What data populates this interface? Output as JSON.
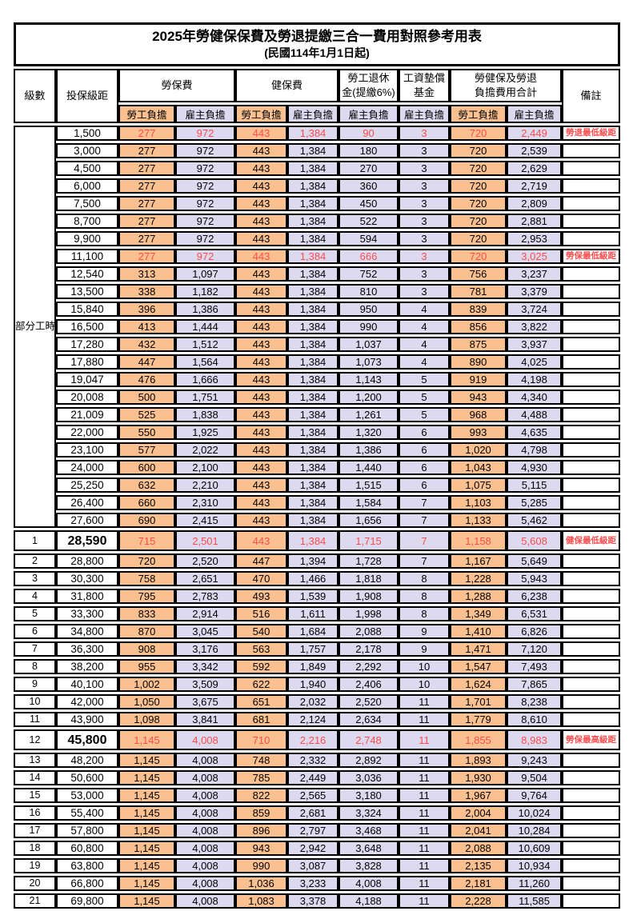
{
  "title": {
    "main": "2025年勞健保保費及勞退提繳三合一費用對照參考用表",
    "sub": "(民國114年1月1日起)"
  },
  "header": {
    "level": "級數",
    "bracket": "投保級距",
    "labor_insurance": "勞保費",
    "health_insurance": "健保費",
    "pension_line1": "勞工退休",
    "pension_line2": "金(提繳6%)",
    "wage_fund_line1": "工資墊償",
    "wage_fund_line2": "基金",
    "total_line1": "勞健保及勞退",
    "total_line2": "負擔費用合計",
    "remark": "備註",
    "employee": "勞工負擔",
    "employer": "雇主負擔"
  },
  "colors": {
    "employee_bg": "#FAC090",
    "employer_bg": "#DDDAF0",
    "highlight_text": "#FF4C4C",
    "border": "#000000"
  },
  "merged_level": {
    "label": "部分工時",
    "span": 23
  },
  "value_column_pattern": [
    "emp",
    "er",
    "emp",
    "er",
    "er",
    "er",
    "emp",
    "er"
  ],
  "rows": [
    {
      "no": null,
      "bracket": "1,500",
      "values": [
        "277",
        "972",
        "443",
        "1,384",
        "90",
        "3",
        "720",
        "2,449"
      ],
      "note": "勞退最低級距",
      "highlight": true,
      "big": false
    },
    {
      "no": null,
      "bracket": "3,000",
      "values": [
        "277",
        "972",
        "443",
        "1,384",
        "180",
        "3",
        "720",
        "2,539"
      ],
      "note": "",
      "highlight": false,
      "big": false
    },
    {
      "no": null,
      "bracket": "4,500",
      "values": [
        "277",
        "972",
        "443",
        "1,384",
        "270",
        "3",
        "720",
        "2,629"
      ],
      "note": "",
      "highlight": false,
      "big": false
    },
    {
      "no": null,
      "bracket": "6,000",
      "values": [
        "277",
        "972",
        "443",
        "1,384",
        "360",
        "3",
        "720",
        "2,719"
      ],
      "note": "",
      "highlight": false,
      "big": false
    },
    {
      "no": null,
      "bracket": "7,500",
      "values": [
        "277",
        "972",
        "443",
        "1,384",
        "450",
        "3",
        "720",
        "2,809"
      ],
      "note": "",
      "highlight": false,
      "big": false
    },
    {
      "no": null,
      "bracket": "8,700",
      "values": [
        "277",
        "972",
        "443",
        "1,384",
        "522",
        "3",
        "720",
        "2,881"
      ],
      "note": "",
      "highlight": false,
      "big": false
    },
    {
      "no": null,
      "bracket": "9,900",
      "values": [
        "277",
        "972",
        "443",
        "1,384",
        "594",
        "3",
        "720",
        "2,953"
      ],
      "note": "",
      "highlight": false,
      "big": false
    },
    {
      "no": null,
      "bracket": "11,100",
      "values": [
        "277",
        "972",
        "443",
        "1,384",
        "666",
        "3",
        "720",
        "3,025"
      ],
      "note": "勞保最低級距",
      "highlight": true,
      "big": false
    },
    {
      "no": null,
      "bracket": "12,540",
      "values": [
        "313",
        "1,097",
        "443",
        "1,384",
        "752",
        "3",
        "756",
        "3,237"
      ],
      "note": "",
      "highlight": false,
      "big": false
    },
    {
      "no": null,
      "bracket": "13,500",
      "values": [
        "338",
        "1,182",
        "443",
        "1,384",
        "810",
        "3",
        "781",
        "3,379"
      ],
      "note": "",
      "highlight": false,
      "big": false
    },
    {
      "no": null,
      "bracket": "15,840",
      "values": [
        "396",
        "1,386",
        "443",
        "1,384",
        "950",
        "4",
        "839",
        "3,724"
      ],
      "note": "",
      "highlight": false,
      "big": false
    },
    {
      "no": null,
      "bracket": "16,500",
      "values": [
        "413",
        "1,444",
        "443",
        "1,384",
        "990",
        "4",
        "856",
        "3,822"
      ],
      "note": "",
      "highlight": false,
      "big": false
    },
    {
      "no": null,
      "bracket": "17,280",
      "values": [
        "432",
        "1,512",
        "443",
        "1,384",
        "1,037",
        "4",
        "875",
        "3,937"
      ],
      "note": "",
      "highlight": false,
      "big": false
    },
    {
      "no": null,
      "bracket": "17,880",
      "values": [
        "447",
        "1,564",
        "443",
        "1,384",
        "1,073",
        "4",
        "890",
        "4,025"
      ],
      "note": "",
      "highlight": false,
      "big": false
    },
    {
      "no": null,
      "bracket": "19,047",
      "values": [
        "476",
        "1,666",
        "443",
        "1,384",
        "1,143",
        "5",
        "919",
        "4,198"
      ],
      "note": "",
      "highlight": false,
      "big": false
    },
    {
      "no": null,
      "bracket": "20,008",
      "values": [
        "500",
        "1,751",
        "443",
        "1,384",
        "1,200",
        "5",
        "943",
        "4,340"
      ],
      "note": "",
      "highlight": false,
      "big": false
    },
    {
      "no": null,
      "bracket": "21,009",
      "values": [
        "525",
        "1,838",
        "443",
        "1,384",
        "1,261",
        "5",
        "968",
        "4,488"
      ],
      "note": "",
      "highlight": false,
      "big": false
    },
    {
      "no": null,
      "bracket": "22,000",
      "values": [
        "550",
        "1,925",
        "443",
        "1,384",
        "1,320",
        "6",
        "993",
        "4,635"
      ],
      "note": "",
      "highlight": false,
      "big": false
    },
    {
      "no": null,
      "bracket": "23,100",
      "values": [
        "577",
        "2,022",
        "443",
        "1,384",
        "1,386",
        "6",
        "1,020",
        "4,798"
      ],
      "note": "",
      "highlight": false,
      "big": false
    },
    {
      "no": null,
      "bracket": "24,000",
      "values": [
        "600",
        "2,100",
        "443",
        "1,384",
        "1,440",
        "6",
        "1,043",
        "4,930"
      ],
      "note": "",
      "highlight": false,
      "big": false
    },
    {
      "no": null,
      "bracket": "25,250",
      "values": [
        "632",
        "2,210",
        "443",
        "1,384",
        "1,515",
        "6",
        "1,075",
        "5,115"
      ],
      "note": "",
      "highlight": false,
      "big": false
    },
    {
      "no": null,
      "bracket": "26,400",
      "values": [
        "660",
        "2,310",
        "443",
        "1,384",
        "1,584",
        "7",
        "1,103",
        "5,285"
      ],
      "note": "",
      "highlight": false,
      "big": false
    },
    {
      "no": null,
      "bracket": "27,600",
      "values": [
        "690",
        "2,415",
        "443",
        "1,384",
        "1,656",
        "7",
        "1,133",
        "5,462"
      ],
      "note": "",
      "highlight": false,
      "big": false
    },
    {
      "no": "1",
      "bracket": "28,590",
      "values": [
        "715",
        "2,501",
        "443",
        "1,384",
        "1,715",
        "7",
        "1,158",
        "5,608"
      ],
      "note": "健保最低級距",
      "highlight": true,
      "big": true
    },
    {
      "no": "2",
      "bracket": "28,800",
      "values": [
        "720",
        "2,520",
        "447",
        "1,394",
        "1,728",
        "7",
        "1,167",
        "5,649"
      ],
      "note": "",
      "highlight": false,
      "big": false
    },
    {
      "no": "3",
      "bracket": "30,300",
      "values": [
        "758",
        "2,651",
        "470",
        "1,466",
        "1,818",
        "8",
        "1,228",
        "5,943"
      ],
      "note": "",
      "highlight": false,
      "big": false
    },
    {
      "no": "4",
      "bracket": "31,800",
      "values": [
        "795",
        "2,783",
        "493",
        "1,539",
        "1,908",
        "8",
        "1,288",
        "6,238"
      ],
      "note": "",
      "highlight": false,
      "big": false
    },
    {
      "no": "5",
      "bracket": "33,300",
      "values": [
        "833",
        "2,914",
        "516",
        "1,611",
        "1,998",
        "8",
        "1,349",
        "6,531"
      ],
      "note": "",
      "highlight": false,
      "big": false
    },
    {
      "no": "6",
      "bracket": "34,800",
      "values": [
        "870",
        "3,045",
        "540",
        "1,684",
        "2,088",
        "9",
        "1,410",
        "6,826"
      ],
      "note": "",
      "highlight": false,
      "big": false
    },
    {
      "no": "7",
      "bracket": "36,300",
      "values": [
        "908",
        "3,176",
        "563",
        "1,757",
        "2,178",
        "9",
        "1,471",
        "7,120"
      ],
      "note": "",
      "highlight": false,
      "big": false
    },
    {
      "no": "8",
      "bracket": "38,200",
      "values": [
        "955",
        "3,342",
        "592",
        "1,849",
        "2,292",
        "10",
        "1,547",
        "7,493"
      ],
      "note": "",
      "highlight": false,
      "big": false
    },
    {
      "no": "9",
      "bracket": "40,100",
      "values": [
        "1,002",
        "3,509",
        "622",
        "1,940",
        "2,406",
        "10",
        "1,624",
        "7,865"
      ],
      "note": "",
      "highlight": false,
      "big": false
    },
    {
      "no": "10",
      "bracket": "42,000",
      "values": [
        "1,050",
        "3,675",
        "651",
        "2,032",
        "2,520",
        "11",
        "1,701",
        "8,238"
      ],
      "note": "",
      "highlight": false,
      "big": false
    },
    {
      "no": "11",
      "bracket": "43,900",
      "values": [
        "1,098",
        "3,841",
        "681",
        "2,124",
        "2,634",
        "11",
        "1,779",
        "8,610"
      ],
      "note": "",
      "highlight": false,
      "big": false
    },
    {
      "no": "12",
      "bracket": "45,800",
      "values": [
        "1,145",
        "4,008",
        "710",
        "2,216",
        "2,748",
        "11",
        "1,855",
        "8,983"
      ],
      "note": "勞保最高級距",
      "highlight": true,
      "big": true
    },
    {
      "no": "13",
      "bracket": "48,200",
      "values": [
        "1,145",
        "4,008",
        "748",
        "2,332",
        "2,892",
        "11",
        "1,893",
        "9,243"
      ],
      "note": "",
      "highlight": false,
      "big": false
    },
    {
      "no": "14",
      "bracket": "50,600",
      "values": [
        "1,145",
        "4,008",
        "785",
        "2,449",
        "3,036",
        "11",
        "1,930",
        "9,504"
      ],
      "note": "",
      "highlight": false,
      "big": false
    },
    {
      "no": "15",
      "bracket": "53,000",
      "values": [
        "1,145",
        "4,008",
        "822",
        "2,565",
        "3,180",
        "11",
        "1,967",
        "9,764"
      ],
      "note": "",
      "highlight": false,
      "big": false
    },
    {
      "no": "16",
      "bracket": "55,400",
      "values": [
        "1,145",
        "4,008",
        "859",
        "2,681",
        "3,324",
        "11",
        "2,004",
        "10,024"
      ],
      "note": "",
      "highlight": false,
      "big": false
    },
    {
      "no": "17",
      "bracket": "57,800",
      "values": [
        "1,145",
        "4,008",
        "896",
        "2,797",
        "3,468",
        "11",
        "2,041",
        "10,284"
      ],
      "note": "",
      "highlight": false,
      "big": false
    },
    {
      "no": "18",
      "bracket": "60,800",
      "values": [
        "1,145",
        "4,008",
        "943",
        "2,942",
        "3,648",
        "11",
        "2,088",
        "10,609"
      ],
      "note": "",
      "highlight": false,
      "big": false
    },
    {
      "no": "19",
      "bracket": "63,800",
      "values": [
        "1,145",
        "4,008",
        "990",
        "3,087",
        "3,828",
        "11",
        "2,135",
        "10,934"
      ],
      "note": "",
      "highlight": false,
      "big": false
    },
    {
      "no": "20",
      "bracket": "66,800",
      "values": [
        "1,145",
        "4,008",
        "1,036",
        "3,233",
        "4,008",
        "11",
        "2,181",
        "11,260"
      ],
      "note": "",
      "highlight": false,
      "big": false
    },
    {
      "no": "21",
      "bracket": "69,800",
      "values": [
        "1,145",
        "4,008",
        "1,083",
        "3,378",
        "4,188",
        "11",
        "2,228",
        "11,585"
      ],
      "note": "",
      "highlight": false,
      "big": false
    }
  ]
}
